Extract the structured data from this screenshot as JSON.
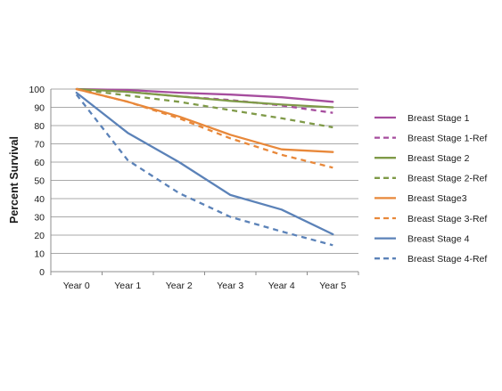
{
  "chart_data": {
    "type": "line",
    "title": "",
    "xlabel": "",
    "ylabel": "Percent Survival",
    "categories": [
      "Year 0",
      "Year 1",
      "Year 2",
      "Year 3",
      "Year 4",
      "Year 5"
    ],
    "ylim": [
      0,
      100
    ],
    "yticks": [
      0,
      10,
      20,
      30,
      40,
      50,
      60,
      70,
      80,
      90,
      100
    ],
    "grid": "horizontal",
    "legend_position": "right",
    "series": [
      {
        "name": "Breast Stage 1",
        "color": "#a64d9e",
        "dashed": false,
        "values": [
          100,
          99.5,
          98,
          97,
          95.5,
          93
        ]
      },
      {
        "name": "Breast Stage 1-Ref",
        "color": "#a64d9e",
        "dashed": true,
        "values": [
          100,
          98.5,
          96,
          94,
          91,
          87
        ]
      },
      {
        "name": "Breast Stage 2",
        "color": "#7f9a48",
        "dashed": false,
        "values": [
          100,
          98.5,
          96,
          93.5,
          91.5,
          90
        ]
      },
      {
        "name": "Breast Stage 2-Ref",
        "color": "#7f9a48",
        "dashed": true,
        "values": [
          100,
          96.5,
          93,
          88.5,
          84,
          79
        ]
      },
      {
        "name": "Breast Stage3",
        "color": "#e8883a",
        "dashed": false,
        "values": [
          100,
          93,
          85,
          75,
          67,
          65.5
        ]
      },
      {
        "name": "Breast Stage 3-Ref",
        "color": "#e8883a",
        "dashed": true,
        "values": [
          100,
          93,
          84,
          73,
          64,
          57
        ]
      },
      {
        "name": "Breast Stage 4",
        "color": "#5b82b8",
        "dashed": false,
        "values": [
          98,
          76,
          60,
          42,
          34,
          20.5
        ]
      },
      {
        "name": "Breast Stage 4-Ref",
        "color": "#5b82b8",
        "dashed": true,
        "values": [
          97,
          61,
          43,
          30,
          22,
          14.5
        ]
      }
    ]
  }
}
